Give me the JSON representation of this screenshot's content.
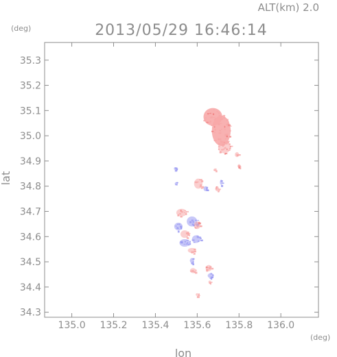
{
  "header": {
    "altitude_label": "ALT(km) 2.0",
    "timestamp": "2013/05/29 16:46:14"
  },
  "chart_data": {
    "type": "scatter",
    "title": "2013/05/29 16:46:14",
    "subtitle": "ALT(km) 2.0",
    "xlabel": "lon",
    "ylabel": "lat",
    "x_unit": "(deg)",
    "y_unit": "(deg)",
    "xlim": [
      134.87,
      136.18
    ],
    "ylim": [
      34.28,
      35.37
    ],
    "x_ticks": [
      135.0,
      135.2,
      135.4,
      135.6,
      135.8,
      136.0
    ],
    "x_tick_labels": [
      "135.0",
      "135.2",
      "135.4",
      "135.6",
      "135.8",
      "136.0"
    ],
    "y_ticks": [
      34.3,
      34.4,
      34.5,
      34.6,
      34.7,
      34.8,
      34.9,
      35.0,
      35.1,
      35.2,
      35.3
    ],
    "y_tick_labels": [
      "34.3",
      "34.4",
      "34.5",
      "34.6",
      "34.7",
      "34.8",
      "34.9",
      "35.0",
      "35.1",
      "35.2",
      "35.3"
    ],
    "grid": false,
    "colors": {
      "positive": "#f7a8a8",
      "positive_strong": "#f08080",
      "negative": "#9a9af2",
      "frame": "#8c8c8c",
      "text": "#8c8c8c"
    },
    "series": [
      {
        "values": [
          {
            "lon": 135.675,
            "lat": 35.075,
            "dlon": 0.09,
            "dlat": 0.07,
            "sign": 1
          },
          {
            "lon": 135.715,
            "lat": 35.02,
            "dlon": 0.09,
            "dlat": 0.12,
            "sign": 1
          },
          {
            "lon": 135.73,
            "lat": 34.955,
            "dlon": 0.06,
            "dlat": 0.05,
            "sign": 1
          },
          {
            "lon": 135.79,
            "lat": 34.925,
            "dlon": 0.02,
            "dlat": 0.02,
            "sign": 1
          },
          {
            "lon": 135.8,
            "lat": 34.88,
            "dlon": 0.01,
            "dlat": 0.015,
            "sign": 1
          },
          {
            "lon": 135.495,
            "lat": 34.87,
            "dlon": 0.01,
            "dlat": 0.01,
            "sign": -1
          },
          {
            "lon": 135.5,
            "lat": 34.81,
            "dlon": 0.015,
            "dlat": 0.012,
            "sign": -1
          },
          {
            "lon": 135.605,
            "lat": 34.81,
            "dlon": 0.04,
            "dlat": 0.04,
            "sign": 1
          },
          {
            "lon": 135.64,
            "lat": 34.79,
            "dlon": 0.02,
            "dlat": 0.02,
            "sign": -1
          },
          {
            "lon": 135.685,
            "lat": 34.865,
            "dlon": 0.012,
            "dlat": 0.01,
            "sign": 1
          },
          {
            "lon": 135.695,
            "lat": 34.79,
            "dlon": 0.018,
            "dlat": 0.02,
            "sign": 1
          },
          {
            "lon": 135.715,
            "lat": 34.815,
            "dlon": 0.012,
            "dlat": 0.02,
            "sign": -1
          },
          {
            "lon": 135.525,
            "lat": 34.695,
            "dlon": 0.05,
            "dlat": 0.03,
            "sign": 1
          },
          {
            "lon": 135.51,
            "lat": 34.64,
            "dlon": 0.04,
            "dlat": 0.03,
            "sign": -1
          },
          {
            "lon": 135.575,
            "lat": 34.66,
            "dlon": 0.05,
            "dlat": 0.04,
            "sign": -1
          },
          {
            "lon": 135.6,
            "lat": 34.645,
            "dlon": 0.03,
            "dlat": 0.03,
            "sign": 1
          },
          {
            "lon": 135.54,
            "lat": 34.61,
            "dlon": 0.04,
            "dlat": 0.03,
            "sign": 1
          },
          {
            "lon": 135.54,
            "lat": 34.575,
            "dlon": 0.05,
            "dlat": 0.03,
            "sign": -1
          },
          {
            "lon": 135.595,
            "lat": 34.59,
            "dlon": 0.04,
            "dlat": 0.03,
            "sign": -1
          },
          {
            "lon": 135.575,
            "lat": 34.545,
            "dlon": 0.04,
            "dlat": 0.02,
            "sign": 1
          },
          {
            "lon": 135.575,
            "lat": 34.505,
            "dlon": 0.02,
            "dlat": 0.02,
            "sign": -1
          },
          {
            "lon": 135.58,
            "lat": 34.465,
            "dlon": 0.03,
            "dlat": 0.02,
            "sign": 1
          },
          {
            "lon": 135.655,
            "lat": 34.475,
            "dlon": 0.03,
            "dlat": 0.025,
            "sign": 1
          },
          {
            "lon": 135.665,
            "lat": 34.445,
            "dlon": 0.03,
            "dlat": 0.02,
            "sign": -1
          },
          {
            "lon": 135.66,
            "lat": 34.42,
            "dlon": 0.01,
            "dlat": 0.01,
            "sign": 1
          },
          {
            "lon": 135.6,
            "lat": 34.37,
            "dlon": 0.015,
            "dlat": 0.01,
            "sign": 1
          }
        ]
      }
    ]
  }
}
